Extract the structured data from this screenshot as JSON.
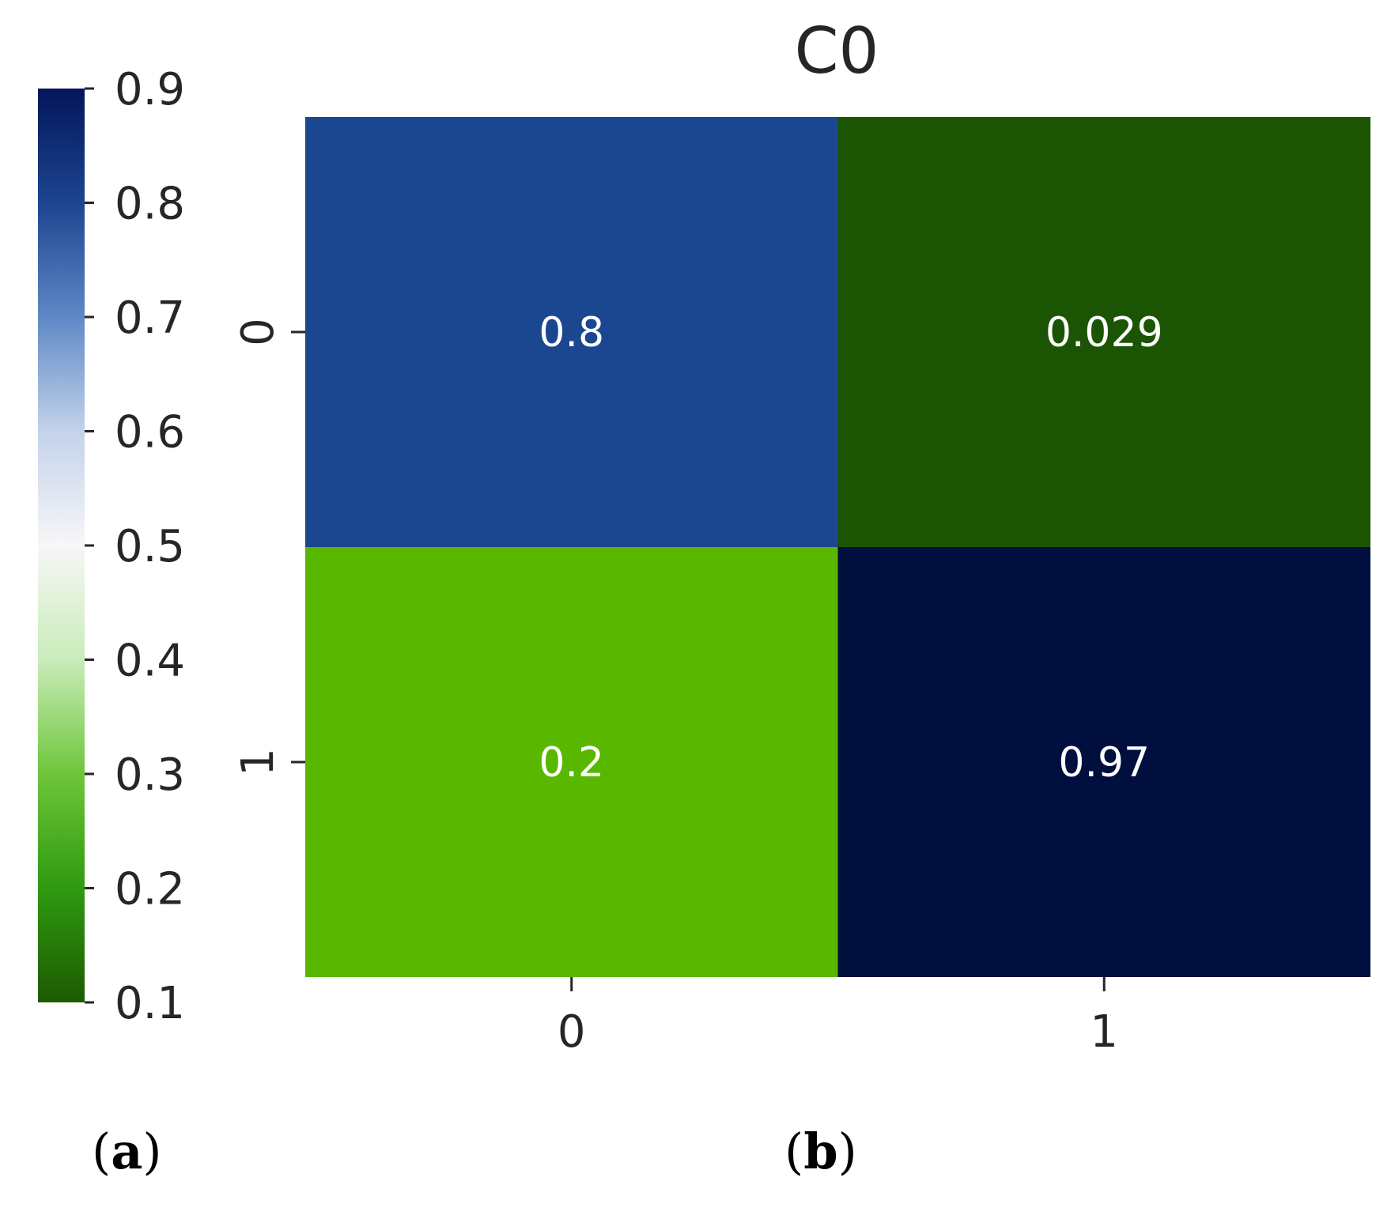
{
  "chart_data": {
    "type": "heatmap",
    "title": "C0",
    "x_categories": [
      "0",
      "1"
    ],
    "y_categories": [
      "0",
      "1"
    ],
    "values": [
      [
        0.8,
        0.029
      ],
      [
        0.2,
        0.97
      ]
    ],
    "value_labels": [
      [
        "0.8",
        "0.029"
      ],
      [
        "0.2",
        "0.97"
      ]
    ],
    "xlabel": "",
    "ylabel": "",
    "colorbar": {
      "range": [
        0.1,
        0.9
      ],
      "ticks": [
        0.1,
        0.2,
        0.3,
        0.4,
        0.5,
        0.6,
        0.7,
        0.8,
        0.9
      ],
      "tick_labels": [
        "0.1",
        "0.2",
        "0.3",
        "0.4",
        "0.5",
        "0.6",
        "0.7",
        "0.8",
        "0.9"
      ],
      "placement": "left",
      "colormap_stops": [
        {
          "value": 0.029,
          "color": "#1a5200"
        },
        {
          "value": 0.1,
          "color": "#1d5a02"
        },
        {
          "value": 0.2,
          "color": "#2f9a10"
        },
        {
          "value": 0.3,
          "color": "#6ec63a"
        },
        {
          "value": 0.4,
          "color": "#c9ecba"
        },
        {
          "value": 0.5,
          "color": "#f7f7f7"
        },
        {
          "value": 0.6,
          "color": "#c3d2ea"
        },
        {
          "value": 0.7,
          "color": "#5f88c7"
        },
        {
          "value": 0.8,
          "color": "#1c4590"
        },
        {
          "value": 0.9,
          "color": "#03165a"
        },
        {
          "value": 0.97,
          "color": "#00103c"
        }
      ]
    },
    "cell_colors": [
      [
        "#1b4690",
        "#1b5402"
      ],
      [
        "#59b700",
        "#000f3e"
      ]
    ]
  },
  "panel_labels": {
    "a": "a",
    "b": "b"
  }
}
